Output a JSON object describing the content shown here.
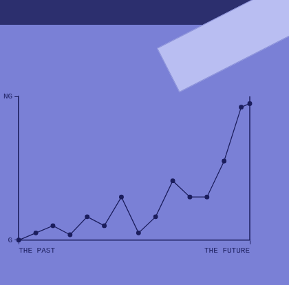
{
  "chart_data": {
    "type": "line",
    "x": [
      0,
      1,
      2,
      3,
      4,
      5,
      6,
      7,
      8,
      9,
      10,
      11,
      12,
      13,
      13.5
    ],
    "values": [
      0,
      0.4,
      0.8,
      0.3,
      1.3,
      0.8,
      2.4,
      0.4,
      1.3,
      3.3,
      2.4,
      2.4,
      4.4,
      7.4,
      7.6
    ],
    "color": "#1c1e5e",
    "marker": "circle",
    "line_style": "solid",
    "xlim": [
      0,
      13.5
    ],
    "xticks": [
      {
        "value": 0,
        "label": "THE PAST"
      },
      {
        "value": 13.5,
        "label": "THE FUTURE"
      }
    ],
    "ylim": [
      0,
      8
    ],
    "yticks": [
      {
        "value": 0,
        "label": "G"
      },
      {
        "value": 8,
        "label": "NG"
      }
    ],
    "grid": false
  }
}
